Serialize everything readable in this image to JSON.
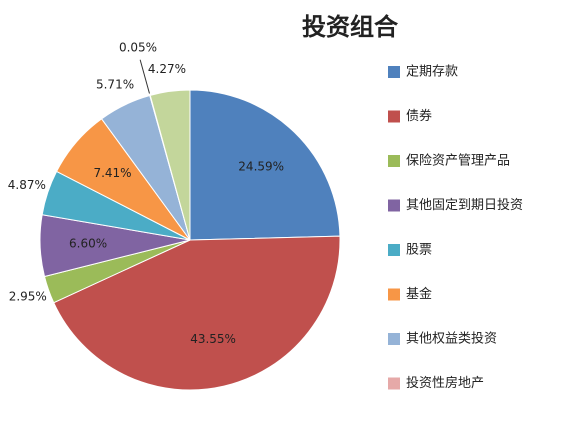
{
  "chart_data": {
    "type": "pie",
    "title": "投资组合",
    "categories": [
      "定期存款",
      "债券",
      "保险资产管理产品",
      "其他固定到期日投资",
      "股票",
      "基金",
      "其他权益类投资",
      "投资性房地产",
      null
    ],
    "values": [
      24.59,
      43.55,
      2.95,
      6.6,
      4.87,
      7.41,
      5.71,
      0.05,
      4.27
    ],
    "value_labels": [
      "24.59%",
      "43.55%",
      "2.95%",
      "6.60%",
      "4.87%",
      "7.41%",
      "5.71%",
      "0.05%",
      "4.27%"
    ],
    "colors": [
      "#4f81bd",
      "#c0504d",
      "#9bbb59",
      "#8064a2",
      "#4bacc6",
      "#f79646",
      "#95b3d7",
      "#e6a9a8",
      "#c3d69b"
    ]
  }
}
